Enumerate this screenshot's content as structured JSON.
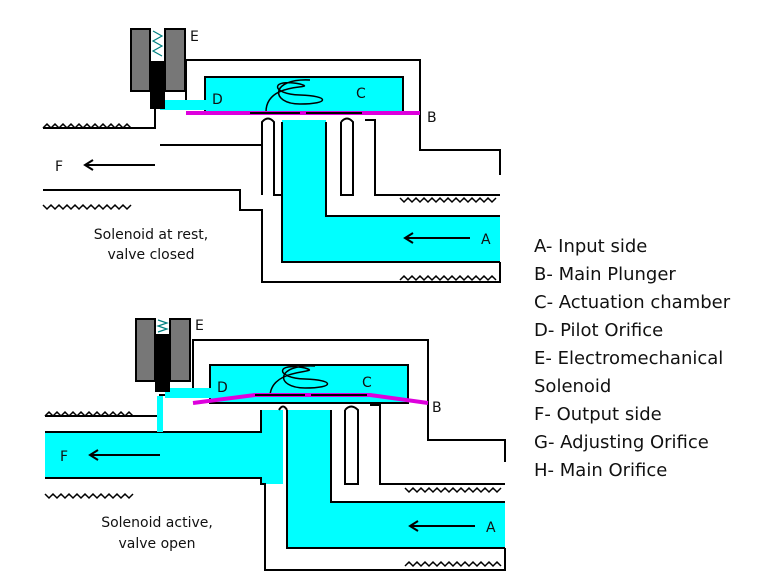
{
  "colors": {
    "fluid": "#00ffff",
    "plunger": "#dd00dd",
    "solenoid": "#777777",
    "line": "#000000"
  },
  "panels": [
    {
      "letters": {
        "e": "E",
        "d": "D",
        "c": "C",
        "b": "B",
        "f": "F",
        "a": "A"
      },
      "caption": [
        "Solenoid at rest,",
        "valve closed"
      ]
    },
    {
      "letters": {
        "e": "E",
        "d": "D",
        "c": "C",
        "b": "B",
        "f": "F",
        "a": "A"
      },
      "caption": [
        "Solenoid active,",
        "valve open"
      ]
    }
  ],
  "legend": [
    "A- Input side",
    "B- Main Plunger",
    "C- Actuation chamber",
    "D- Pilot Orifice",
    "E- Electromechanical",
    "Solenoid",
    "F- Output side",
    "G- Adjusting Orifice",
    "H- Main Orifice"
  ]
}
